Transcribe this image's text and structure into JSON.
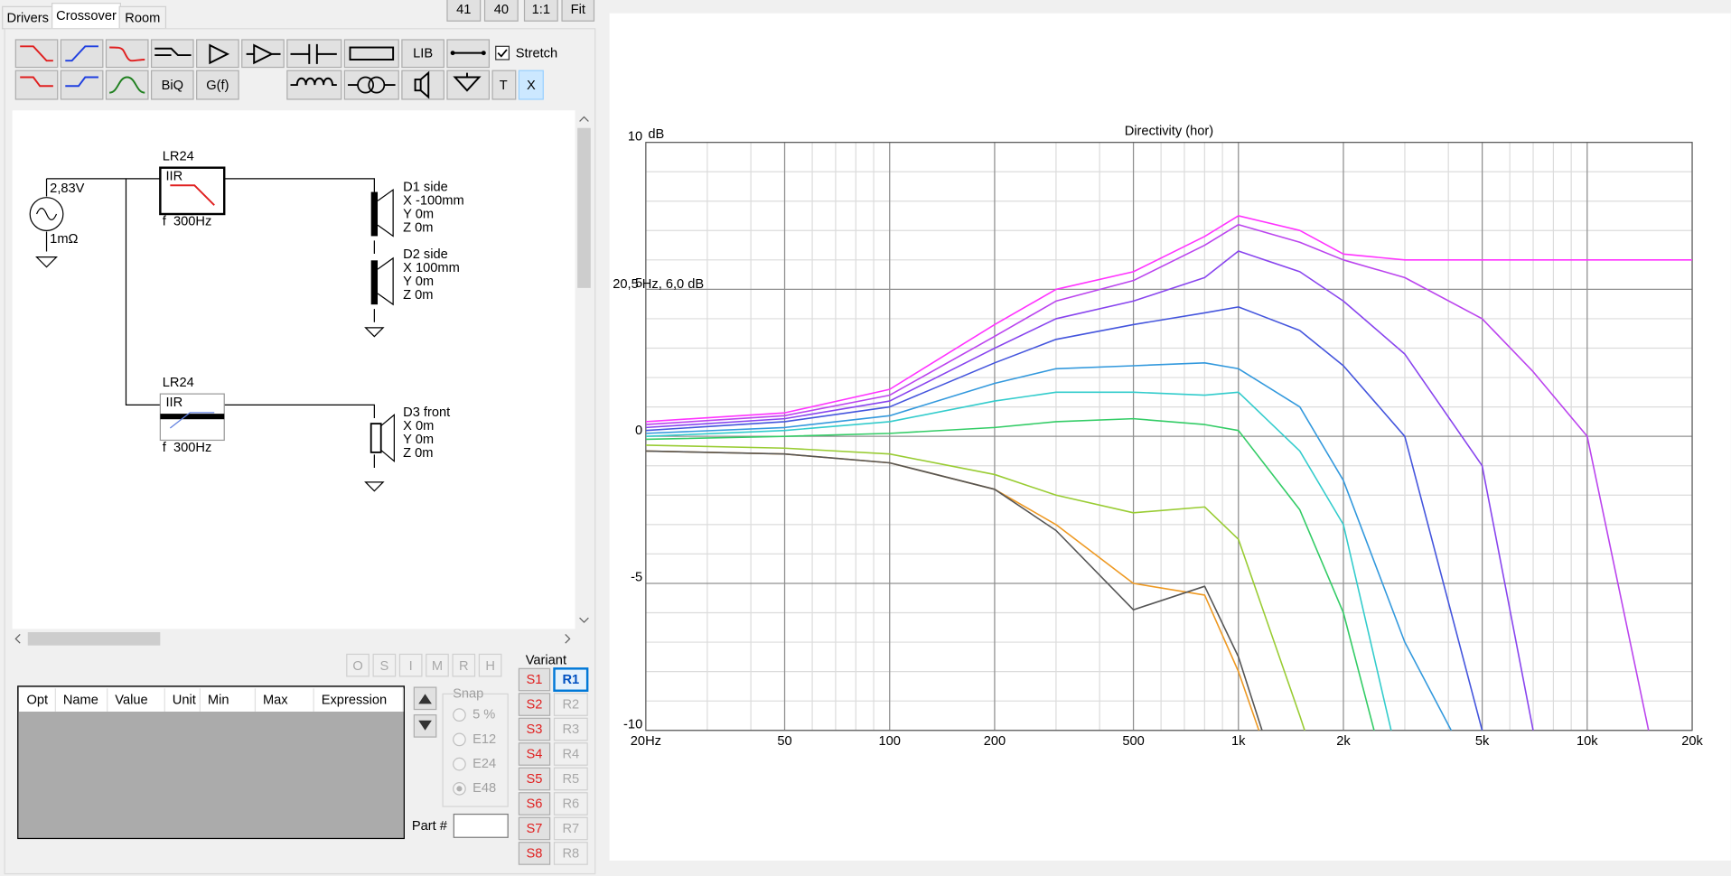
{
  "tabs": [
    "Drivers",
    "Crossover",
    "Room"
  ],
  "view_buttons": [
    "41",
    "40",
    "1:1",
    "Fit"
  ],
  "toolbar": {
    "lib": "LIB",
    "biq": "BiQ",
    "gf": "G(f)",
    "t": "T",
    "x": "X",
    "stretch": "Stretch"
  },
  "schematic": {
    "source_voltage": "2,83V",
    "source_impedance": "1mΩ",
    "filters": [
      {
        "name": "LR24",
        "kind": "IIR",
        "freq": "f  300Hz"
      },
      {
        "name": "LR24",
        "kind": "IIR",
        "freq": "f  300Hz"
      }
    ],
    "drivers": [
      {
        "name": "D1 side",
        "x": "X -100mm",
        "y": "Y 0m",
        "z": "Z 0m"
      },
      {
        "name": "D2 side",
        "x": "X 100mm",
        "y": "Y 0m",
        "z": "Z 0m"
      },
      {
        "name": "D3 front",
        "x": "X 0m",
        "y": "Y 0m",
        "z": "Z 0m"
      }
    ]
  },
  "part_buttons": [
    "O",
    "S",
    "I",
    "M",
    "R",
    "H"
  ],
  "table": {
    "columns": [
      "Opt",
      "Name",
      "Value",
      "Unit",
      "Min",
      "Max",
      "Expression"
    ]
  },
  "snap": {
    "title": "Snap",
    "options": [
      "5 %",
      "E12",
      "E24",
      "E48"
    ]
  },
  "part_label": "Part #",
  "variant": {
    "title": "Variant",
    "s": [
      "S1",
      "S2",
      "S3",
      "S4",
      "S5",
      "S6",
      "S7",
      "S8"
    ],
    "r": [
      "R1",
      "R2",
      "R3",
      "R4",
      "R5",
      "R6",
      "R7",
      "R8"
    ]
  },
  "chart_data": {
    "type": "line",
    "title": "Directivity (hor)",
    "y_unit": "dB",
    "annotation": "20,5 Hz, 6,0 dB",
    "log_x": true,
    "grid": true,
    "xlim": [
      20,
      20000
    ],
    "ylim": [
      -10,
      10
    ],
    "xticks": [
      {
        "value": 20,
        "label": "20Hz"
      },
      50,
      100,
      200,
      500,
      {
        "value": 1000,
        "label": "1k"
      },
      {
        "value": 2000,
        "label": "2k"
      },
      {
        "value": 5000,
        "label": "5k"
      },
      {
        "value": 10000,
        "label": "10k"
      },
      {
        "value": 20000,
        "label": "20k"
      }
    ],
    "yticks": [
      -10,
      -5,
      0,
      5,
      10
    ],
    "x": [
      20,
      50,
      100,
      200,
      300,
      500,
      800,
      1000,
      1500,
      2000,
      3000,
      5000,
      7000,
      10000,
      15000,
      20000
    ],
    "series": [
      {
        "color": "#ff33ff",
        "values": [
          0.5,
          0.8,
          1.6,
          3.8,
          5,
          5.6,
          6.8,
          7.5,
          7,
          6.2,
          6,
          6,
          6,
          6,
          6,
          6
        ]
      },
      {
        "color": "#bb44ee",
        "values": [
          0.4,
          0.7,
          1.4,
          3.4,
          4.6,
          5.3,
          6.5,
          7.2,
          6.6,
          6,
          5.4,
          4,
          2.2,
          0,
          -10,
          null
        ]
      },
      {
        "color": "#8844ee",
        "values": [
          0.3,
          0.6,
          1.2,
          3,
          4,
          4.6,
          5.4,
          6.3,
          5.6,
          4.6,
          2.8,
          -1,
          -10,
          null,
          null,
          null
        ]
      },
      {
        "color": "#4455dd",
        "values": [
          0.2,
          0.5,
          1,
          2.5,
          3.3,
          3.8,
          4.2,
          4.4,
          3.6,
          2.4,
          0,
          -10,
          null,
          null,
          null,
          null
        ]
      },
      {
        "color": "#3399dd",
        "values": [
          0.1,
          0.3,
          0.7,
          1.8,
          2.3,
          2.4,
          2.5,
          2.3,
          1,
          -1.5,
          -7,
          -12,
          null,
          null,
          null,
          null
        ]
      },
      {
        "color": "#33cccc",
        "values": [
          0,
          0.2,
          0.5,
          1.2,
          1.5,
          1.5,
          1.4,
          1.5,
          -0.5,
          -3,
          -12,
          null,
          null,
          null,
          null,
          null
        ]
      },
      {
        "color": "#33cc66",
        "values": [
          -0.1,
          0,
          0.1,
          0.3,
          0.5,
          0.6,
          0.4,
          0.2,
          -2.5,
          -6,
          -14,
          null,
          null,
          null,
          null,
          null
        ]
      },
      {
        "color": "#99cc33",
        "values": [
          -0.3,
          -0.4,
          -0.6,
          -1.3,
          -2,
          -2.6,
          -2.4,
          -3.5,
          -9.5,
          -14,
          null,
          null,
          null,
          null,
          null,
          null
        ]
      },
      {
        "color": "#ee9922",
        "values": [
          -0.5,
          -0.6,
          -0.9,
          -1.8,
          -3,
          -5,
          -5.4,
          -8,
          -14,
          null,
          null,
          null,
          null,
          null,
          null,
          null
        ]
      },
      {
        "color": "#555555",
        "values": [
          -0.5,
          -0.6,
          -0.9,
          -1.8,
          -3.2,
          -5.9,
          -5.1,
          -7.5,
          -14,
          null,
          null,
          null,
          null,
          null,
          null,
          null
        ]
      }
    ]
  }
}
